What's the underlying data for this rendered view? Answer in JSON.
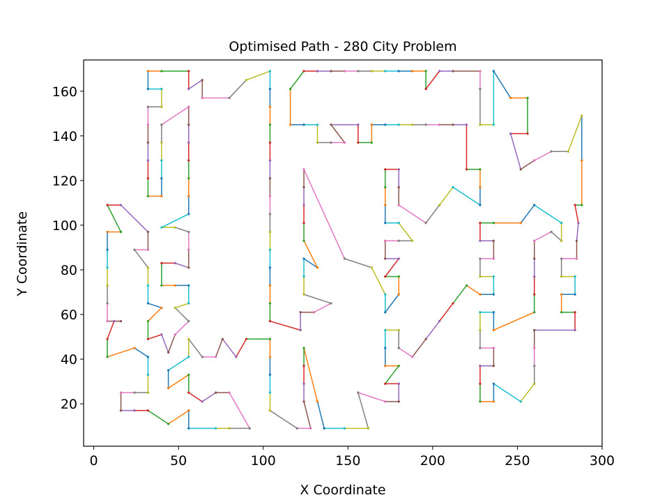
{
  "chart_data": {
    "type": "line",
    "title": "Optimised Path - 280 City Problem",
    "xlabel": "X Coordinate",
    "ylabel": "Y Coordinate",
    "xlim": [
      -6,
      300
    ],
    "ylim": [
      1,
      174
    ],
    "xticks": [
      0,
      50,
      100,
      150,
      200,
      250,
      300
    ],
    "yticks": [
      20,
      40,
      60,
      80,
      100,
      120,
      140,
      160
    ],
    "grid": false,
    "legend": "none",
    "marker": "dot",
    "segment_colors": [
      "#1f77b4",
      "#ff7f0e",
      "#2ca02c",
      "#d62728",
      "#9467bd",
      "#8c564b",
      "#e377c2",
      "#7f7f7f",
      "#bcbd22",
      "#17becf"
    ],
    "path": [
      [
        288,
        149
      ],
      [
        288,
        129
      ],
      [
        288,
        109
      ],
      [
        284,
        109
      ],
      [
        286,
        101
      ],
      [
        285,
        93
      ],
      [
        285,
        85
      ],
      [
        276,
        85
      ],
      [
        276,
        77
      ],
      [
        284,
        77
      ],
      [
        284,
        69
      ],
      [
        276,
        69
      ],
      [
        276,
        61
      ],
      [
        284,
        61
      ],
      [
        284,
        53
      ],
      [
        260,
        53
      ],
      [
        260,
        45
      ],
      [
        260,
        37
      ],
      [
        260,
        29
      ],
      [
        252,
        21
      ],
      [
        236,
        29
      ],
      [
        236,
        21
      ],
      [
        228,
        21
      ],
      [
        228,
        29
      ],
      [
        228,
        37
      ],
      [
        236,
        37
      ],
      [
        236,
        45
      ],
      [
        228,
        45
      ],
      [
        228,
        53
      ],
      [
        228,
        61
      ],
      [
        236,
        61
      ],
      [
        236,
        53
      ],
      [
        260,
        61
      ],
      [
        260,
        69
      ],
      [
        260,
        77
      ],
      [
        260,
        85
      ],
      [
        260,
        93
      ],
      [
        270,
        97
      ],
      [
        276,
        93
      ],
      [
        276,
        101
      ],
      [
        260,
        109
      ],
      [
        252,
        101
      ],
      [
        236,
        101
      ],
      [
        228,
        101
      ],
      [
        228,
        93
      ],
      [
        236,
        93
      ],
      [
        236,
        85
      ],
      [
        228,
        85
      ],
      [
        228,
        77
      ],
      [
        236,
        77
      ],
      [
        236,
        69
      ],
      [
        228,
        69
      ],
      [
        220,
        73
      ],
      [
        212,
        65
      ],
      [
        204,
        57
      ],
      [
        196,
        49
      ],
      [
        188,
        41
      ],
      [
        180,
        45
      ],
      [
        180,
        53
      ],
      [
        172,
        53
      ],
      [
        172,
        45
      ],
      [
        172,
        37
      ],
      [
        180,
        37
      ],
      [
        172,
        29
      ],
      [
        180,
        29
      ],
      [
        180,
        21
      ],
      [
        172,
        21
      ],
      [
        156,
        25
      ],
      [
        162,
        9
      ],
      [
        148,
        9
      ],
      [
        136,
        9
      ],
      [
        132,
        21
      ],
      [
        124,
        45
      ],
      [
        124,
        37
      ],
      [
        124,
        29
      ],
      [
        124,
        21
      ],
      [
        128,
        9
      ],
      [
        120,
        9
      ],
      [
        104,
        17
      ],
      [
        104,
        25
      ],
      [
        104,
        33
      ],
      [
        104,
        41
      ],
      [
        104,
        49
      ],
      [
        90,
        49
      ],
      [
        84,
        41
      ],
      [
        76,
        49
      ],
      [
        72,
        41
      ],
      [
        64,
        41
      ],
      [
        56,
        49
      ],
      [
        56,
        41
      ],
      [
        44,
        35
      ],
      [
        44,
        27
      ],
      [
        56,
        33
      ],
      [
        56,
        25
      ],
      [
        64,
        21
      ],
      [
        72,
        25
      ],
      [
        80,
        25
      ],
      [
        92,
        9
      ],
      [
        80,
        9
      ],
      [
        72,
        9
      ],
      [
        56,
        9
      ],
      [
        56,
        17
      ],
      [
        44,
        11
      ],
      [
        32,
        17
      ],
      [
        24,
        17
      ],
      [
        16,
        17
      ],
      [
        16,
        25
      ],
      [
        24,
        25
      ],
      [
        32,
        25
      ],
      [
        32,
        33
      ],
      [
        32,
        41
      ],
      [
        24,
        45
      ],
      [
        8,
        41
      ],
      [
        8,
        49
      ],
      [
        12,
        57
      ],
      [
        16,
        57
      ],
      [
        8,
        57
      ],
      [
        8,
        65
      ],
      [
        8,
        73
      ],
      [
        8,
        81
      ],
      [
        8,
        89
      ],
      [
        8,
        97
      ],
      [
        16,
        97
      ],
      [
        8,
        109
      ],
      [
        16,
        109
      ],
      [
        32,
        97
      ],
      [
        32,
        89
      ],
      [
        24,
        89
      ],
      [
        32,
        81
      ],
      [
        32,
        73
      ],
      [
        32,
        65
      ],
      [
        40,
        63
      ],
      [
        32,
        57
      ],
      [
        32,
        49
      ],
      [
        40,
        51
      ],
      [
        44,
        43
      ],
      [
        48,
        51
      ],
      [
        56,
        57
      ],
      [
        48,
        63
      ],
      [
        56,
        65
      ],
      [
        56,
        73
      ],
      [
        48,
        73
      ],
      [
        40,
        73
      ],
      [
        40,
        83
      ],
      [
        48,
        83
      ],
      [
        56,
        81
      ],
      [
        56,
        89
      ],
      [
        56,
        97
      ],
      [
        48,
        99
      ],
      [
        40,
        99
      ],
      [
        56,
        105
      ],
      [
        56,
        113
      ],
      [
        56,
        121
      ],
      [
        56,
        129
      ],
      [
        56,
        137
      ],
      [
        56,
        145
      ],
      [
        56,
        153
      ],
      [
        40,
        145
      ],
      [
        40,
        137
      ],
      [
        40,
        129
      ],
      [
        40,
        121
      ],
      [
        40,
        113
      ],
      [
        32,
        113
      ],
      [
        32,
        121
      ],
      [
        32,
        129
      ],
      [
        32,
        137
      ],
      [
        32,
        145
      ],
      [
        32,
        153
      ],
      [
        40,
        153
      ],
      [
        40,
        161
      ],
      [
        32,
        161
      ],
      [
        32,
        169
      ],
      [
        40,
        169
      ],
      [
        56,
        169
      ],
      [
        56,
        161
      ],
      [
        64,
        165
      ],
      [
        64,
        157
      ],
      [
        80,
        157
      ],
      [
        90,
        165
      ],
      [
        104,
        169
      ],
      [
        104,
        161
      ],
      [
        104,
        153
      ],
      [
        104,
        145
      ],
      [
        104,
        137
      ],
      [
        104,
        129
      ],
      [
        104,
        121
      ],
      [
        104,
        113
      ],
      [
        104,
        105
      ],
      [
        104,
        97
      ],
      [
        104,
        89
      ],
      [
        104,
        81
      ],
      [
        104,
        73
      ],
      [
        104,
        65
      ],
      [
        104,
        57
      ],
      [
        122,
        53
      ],
      [
        122,
        61
      ],
      [
        130,
        61
      ],
      [
        140,
        65
      ],
      [
        124,
        69
      ],
      [
        124,
        77
      ],
      [
        124,
        85
      ],
      [
        132,
        81
      ],
      [
        124,
        93
      ],
      [
        124,
        101
      ],
      [
        124,
        109
      ],
      [
        124,
        117
      ],
      [
        124,
        125
      ],
      [
        148,
        85
      ],
      [
        164,
        81
      ],
      [
        172,
        69
      ],
      [
        172,
        61
      ],
      [
        180,
        69
      ],
      [
        180,
        77
      ],
      [
        172,
        77
      ],
      [
        180,
        85
      ],
      [
        172,
        85
      ],
      [
        172,
        93
      ],
      [
        180,
        93
      ],
      [
        188,
        93
      ],
      [
        180,
        101
      ],
      [
        172,
        101
      ],
      [
        172,
        109
      ],
      [
        172,
        117
      ],
      [
        172,
        125
      ],
      [
        180,
        125
      ],
      [
        180,
        117
      ],
      [
        180,
        109
      ],
      [
        196,
        101
      ],
      [
        204,
        109
      ],
      [
        212,
        117
      ],
      [
        228,
        109
      ],
      [
        228,
        117
      ],
      [
        228,
        125
      ],
      [
        220,
        125
      ],
      [
        220,
        145
      ],
      [
        212,
        145
      ],
      [
        204,
        145
      ],
      [
        196,
        145
      ],
      [
        188,
        145
      ],
      [
        180,
        145
      ],
      [
        172,
        145
      ],
      [
        164,
        145
      ],
      [
        164,
        137
      ],
      [
        156,
        137
      ],
      [
        156,
        145
      ],
      [
        140,
        145
      ],
      [
        148,
        137
      ],
      [
        140,
        137
      ],
      [
        132,
        137
      ],
      [
        132,
        145
      ],
      [
        124,
        145
      ],
      [
        116,
        145
      ],
      [
        116,
        161
      ],
      [
        124,
        169
      ],
      [
        132,
        169
      ],
      [
        140,
        169
      ],
      [
        148,
        169
      ],
      [
        156,
        169
      ],
      [
        164,
        169
      ],
      [
        172,
        169
      ],
      [
        180,
        169
      ],
      [
        188,
        169
      ],
      [
        196,
        169
      ],
      [
        196,
        161
      ],
      [
        204,
        169
      ],
      [
        212,
        169
      ],
      [
        228,
        169
      ],
      [
        228,
        161
      ],
      [
        228,
        145
      ],
      [
        236,
        145
      ],
      [
        236,
        169
      ],
      [
        246,
        157
      ],
      [
        256,
        157
      ],
      [
        256,
        141
      ],
      [
        246,
        141
      ],
      [
        252,
        125
      ],
      [
        260,
        129
      ],
      [
        270,
        133
      ],
      [
        280,
        133
      ],
      [
        288,
        149
      ]
    ]
  }
}
